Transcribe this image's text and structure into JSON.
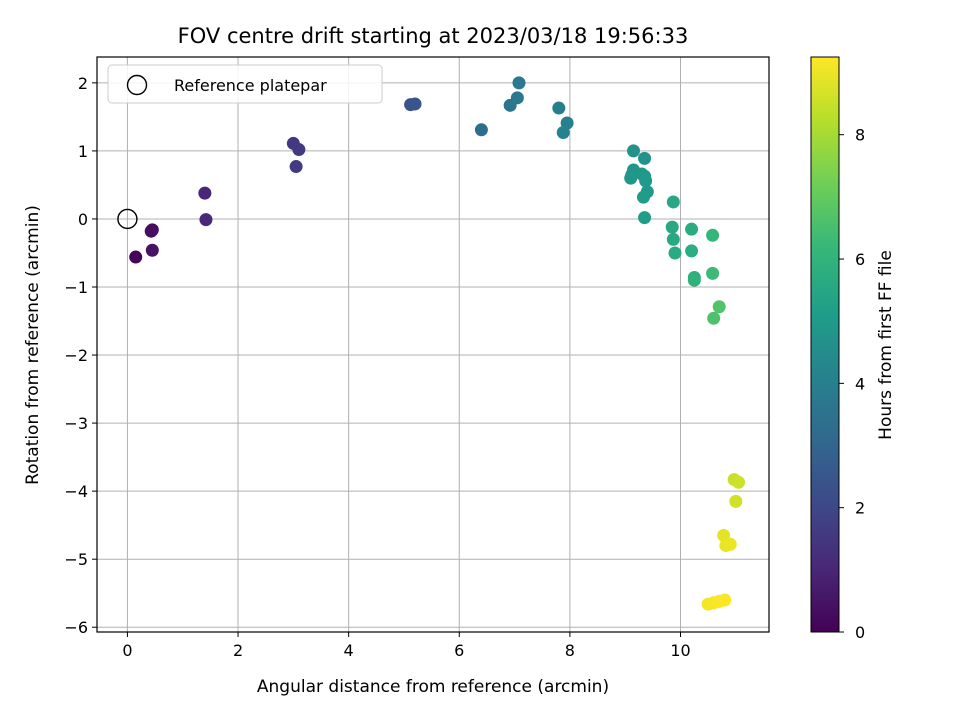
{
  "chart_data": {
    "type": "scatter",
    "title": "FOV centre drift starting at 2023/03/18 19:56:33",
    "xlabel": "Angular distance from reference (arcmin)",
    "ylabel": "Rotation from reference (arcmin)",
    "xlim": [
      -0.55,
      11.6
    ],
    "ylim": [
      -6.07,
      2.38
    ],
    "xticks": [
      0,
      2,
      4,
      6,
      8,
      10
    ],
    "xtick_labels": [
      "0",
      "2",
      "4",
      "6",
      "8",
      "10"
    ],
    "yticks": [
      2,
      1,
      0,
      -1,
      -2,
      -3,
      -4,
      -5,
      -6
    ],
    "ytick_labels": [
      "2",
      "1",
      "0",
      "−1",
      "−2",
      "−3",
      "−4",
      "−5",
      "−6"
    ],
    "grid": true,
    "legend": {
      "position": "top-left",
      "entries": [
        "Reference platepar"
      ]
    },
    "reference_point": {
      "x": 0,
      "y": 0,
      "marker": "open-circle"
    },
    "colorbar": {
      "label": "Hours from first FF file",
      "range": [
        0,
        9.25
      ],
      "ticks": [
        0,
        2,
        4,
        6,
        8
      ],
      "tick_labels": [
        "0",
        "2",
        "4",
        "6",
        "8"
      ],
      "colormap": [
        "#440154",
        "#482878",
        "#3e4989",
        "#31688e",
        "#26828e",
        "#1f9e89",
        "#35b779",
        "#6ece58",
        "#b5de2b",
        "#fde725"
      ]
    },
    "points": [
      {
        "x": 0.15,
        "y": -0.56,
        "c": 0.1
      },
      {
        "x": 0.45,
        "y": -0.16,
        "c": 0.3
      },
      {
        "x": 0.43,
        "y": -0.18,
        "c": 0.35
      },
      {
        "x": 0.45,
        "y": -0.46,
        "c": 0.45
      },
      {
        "x": 1.4,
        "y": 0.38,
        "c": 1.0
      },
      {
        "x": 1.42,
        "y": -0.01,
        "c": 1.05
      },
      {
        "x": 3.0,
        "y": 1.11,
        "c": 1.5
      },
      {
        "x": 3.1,
        "y": 1.02,
        "c": 1.55
      },
      {
        "x": 3.05,
        "y": 0.77,
        "c": 1.6
      },
      {
        "x": 5.12,
        "y": 1.68,
        "c": 2.4
      },
      {
        "x": 5.2,
        "y": 1.69,
        "c": 2.45
      },
      {
        "x": 6.4,
        "y": 1.31,
        "c": 3.3
      },
      {
        "x": 6.92,
        "y": 1.67,
        "c": 3.6
      },
      {
        "x": 7.05,
        "y": 1.78,
        "c": 3.7
      },
      {
        "x": 7.08,
        "y": 2.0,
        "c": 3.75
      },
      {
        "x": 7.8,
        "y": 1.63,
        "c": 4.0
      },
      {
        "x": 7.95,
        "y": 1.41,
        "c": 4.05
      },
      {
        "x": 7.88,
        "y": 1.27,
        "c": 4.1
      },
      {
        "x": 9.15,
        "y": 1.0,
        "c": 4.7
      },
      {
        "x": 9.35,
        "y": 0.89,
        "c": 4.75
      },
      {
        "x": 9.15,
        "y": 0.72,
        "c": 4.8
      },
      {
        "x": 9.12,
        "y": 0.65,
        "c": 4.85
      },
      {
        "x": 9.1,
        "y": 0.6,
        "c": 4.9
      },
      {
        "x": 9.3,
        "y": 0.66,
        "c": 4.9
      },
      {
        "x": 9.35,
        "y": 0.63,
        "c": 4.95
      },
      {
        "x": 9.37,
        "y": 0.56,
        "c": 5.0
      },
      {
        "x": 9.4,
        "y": 0.4,
        "c": 5.0
      },
      {
        "x": 9.33,
        "y": 0.32,
        "c": 5.05
      },
      {
        "x": 9.35,
        "y": 0.02,
        "c": 5.1
      },
      {
        "x": 9.87,
        "y": 0.25,
        "c": 5.5
      },
      {
        "x": 9.85,
        "y": -0.12,
        "c": 5.55
      },
      {
        "x": 9.87,
        "y": -0.3,
        "c": 5.6
      },
      {
        "x": 9.9,
        "y": -0.5,
        "c": 5.65
      },
      {
        "x": 10.2,
        "y": -0.15,
        "c": 5.7
      },
      {
        "x": 10.2,
        "y": -0.47,
        "c": 5.75
      },
      {
        "x": 10.25,
        "y": -0.86,
        "c": 5.85
      },
      {
        "x": 10.25,
        "y": -0.9,
        "c": 5.9
      },
      {
        "x": 10.58,
        "y": -0.24,
        "c": 6.1
      },
      {
        "x": 10.58,
        "y": -0.8,
        "c": 6.3
      },
      {
        "x": 10.6,
        "y": -1.46,
        "c": 6.6
      },
      {
        "x": 10.7,
        "y": -1.29,
        "c": 6.7
      },
      {
        "x": 10.97,
        "y": -3.83,
        "c": 8.5
      },
      {
        "x": 11.05,
        "y": -3.87,
        "c": 8.55
      },
      {
        "x": 11.0,
        "y": -4.15,
        "c": 8.6
      },
      {
        "x": 10.78,
        "y": -4.65,
        "c": 8.9
      },
      {
        "x": 10.82,
        "y": -4.8,
        "c": 8.95
      },
      {
        "x": 10.9,
        "y": -4.78,
        "c": 9.0
      },
      {
        "x": 10.5,
        "y": -5.66,
        "c": 9.1
      },
      {
        "x": 10.6,
        "y": -5.64,
        "c": 9.15
      },
      {
        "x": 10.7,
        "y": -5.62,
        "c": 9.2
      },
      {
        "x": 10.8,
        "y": -5.6,
        "c": 9.25
      }
    ]
  }
}
